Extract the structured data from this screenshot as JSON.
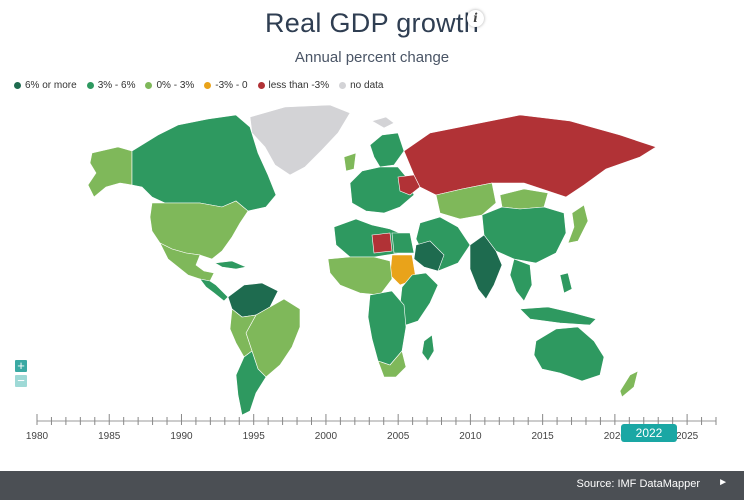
{
  "title": "Real GDP growth",
  "info_icon": "i",
  "subtitle": "Annual percent change",
  "legend": [
    {
      "label": "6% or more",
      "color": "#1e6b4f"
    },
    {
      "label": "3% - 6%",
      "color": "#2e9960"
    },
    {
      "label": "0% - 3%",
      "color": "#7fb85a"
    },
    {
      "label": "-3% - 0",
      "color": "#e9a31a"
    },
    {
      "label": "less than -3%",
      "color": "#b13236"
    },
    {
      "label": "no data",
      "color": "#d3d3d6"
    }
  ],
  "zoom": {
    "in": "+",
    "out": "−"
  },
  "timeline": {
    "labels": [
      "1980",
      "1985",
      "1990",
      "1995",
      "2000",
      "2005",
      "2010",
      "2015",
      "2020",
      "2025"
    ],
    "selected_year": "2022"
  },
  "footer": {
    "source": "Source: IMF DataMapper",
    "play": "►"
  }
}
